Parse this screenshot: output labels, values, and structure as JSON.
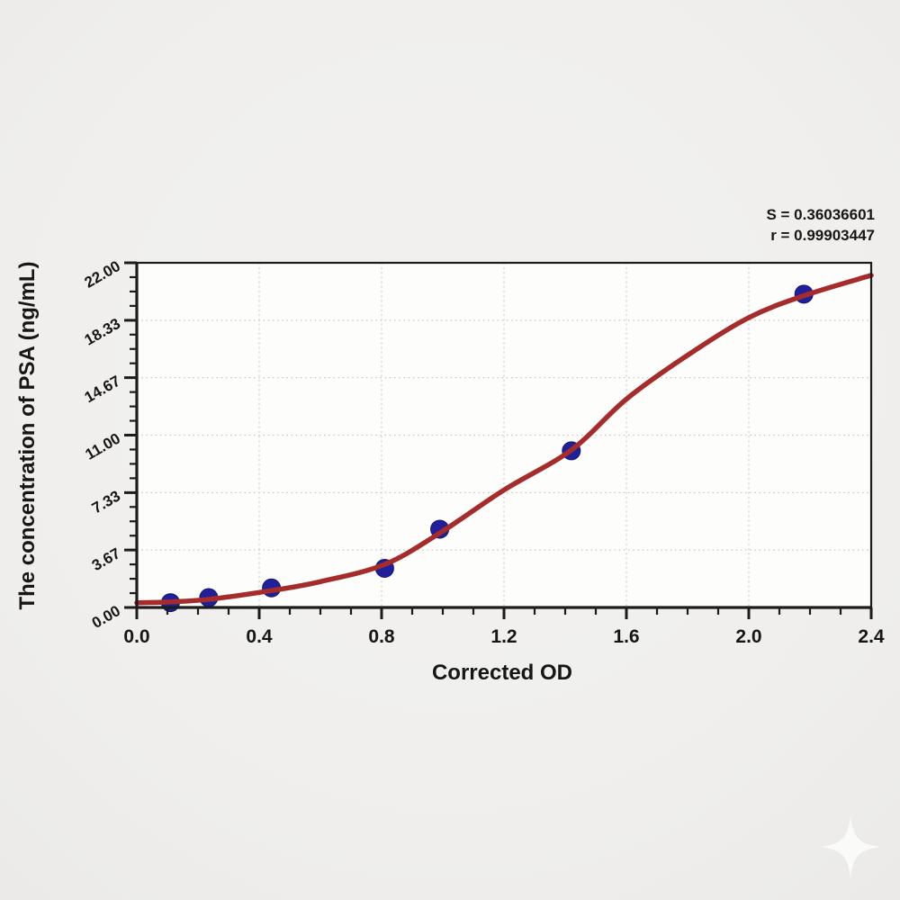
{
  "figure": {
    "background_color": "#f0efed",
    "plot_background_color": "#fdfdfc",
    "watermark_icon": "sparkle-icon",
    "watermark_color": "#fbfbfa"
  },
  "chart_data": {
    "type": "scatter",
    "title": "",
    "xlabel": "Corrected OD",
    "ylabel": "The concentration of PSA (ng/mL)",
    "xlim": [
      0,
      2.4
    ],
    "ylim": [
      0,
      22
    ],
    "grid": "dotted-major-gridlines",
    "legend": "none",
    "x_ticks": {
      "values": [
        0.0,
        0.4,
        0.8,
        1.2,
        1.6,
        2.0,
        2.4
      ],
      "labels": [
        "0.0",
        "0.4",
        "0.8",
        "1.2",
        "1.6",
        "2.0",
        "2.4"
      ],
      "minor_step": 0.1
    },
    "y_ticks": {
      "values": [
        0.0,
        3.67,
        7.33,
        11.0,
        14.67,
        18.33,
        22.0
      ],
      "labels": [
        "0.00",
        "3.67",
        "7.33",
        "11.00",
        "14.67",
        "18.33",
        "22.00"
      ],
      "minor_divisions_per_major": 4,
      "label_rotation_deg": -30
    },
    "series": [
      {
        "name": "standard-points",
        "type": "scatter",
        "color": "#20209a",
        "edge_color": "#15156e",
        "marker": "circle",
        "points": [
          [
            0.11,
            0.31
          ],
          [
            0.235,
            0.63
          ],
          [
            0.44,
            1.25
          ],
          [
            0.81,
            2.5
          ],
          [
            0.99,
            5.0
          ],
          [
            1.42,
            10.0
          ],
          [
            2.18,
            20.0
          ]
        ]
      },
      {
        "name": "fitted-curve",
        "type": "line",
        "color": "#a62b2b",
        "points": [
          [
            0.0,
            0.3
          ],
          [
            0.11,
            0.36
          ],
          [
            0.235,
            0.52
          ],
          [
            0.44,
            1.08
          ],
          [
            0.6,
            1.65
          ],
          [
            0.81,
            2.75
          ],
          [
            0.99,
            4.75
          ],
          [
            1.2,
            7.5
          ],
          [
            1.42,
            10.05
          ],
          [
            1.6,
            13.3
          ],
          [
            1.8,
            16.1
          ],
          [
            2.0,
            18.5
          ],
          [
            2.18,
            19.9
          ],
          [
            2.4,
            21.2
          ]
        ]
      }
    ],
    "annotations": [
      "S = 0.36036601",
      "r = 0.99903447"
    ],
    "colors": {
      "axis": "#1c1c1c",
      "grid": "#c9c9c9",
      "text": "#161616",
      "curve": "#a62b2b",
      "points": "#20209a"
    }
  }
}
